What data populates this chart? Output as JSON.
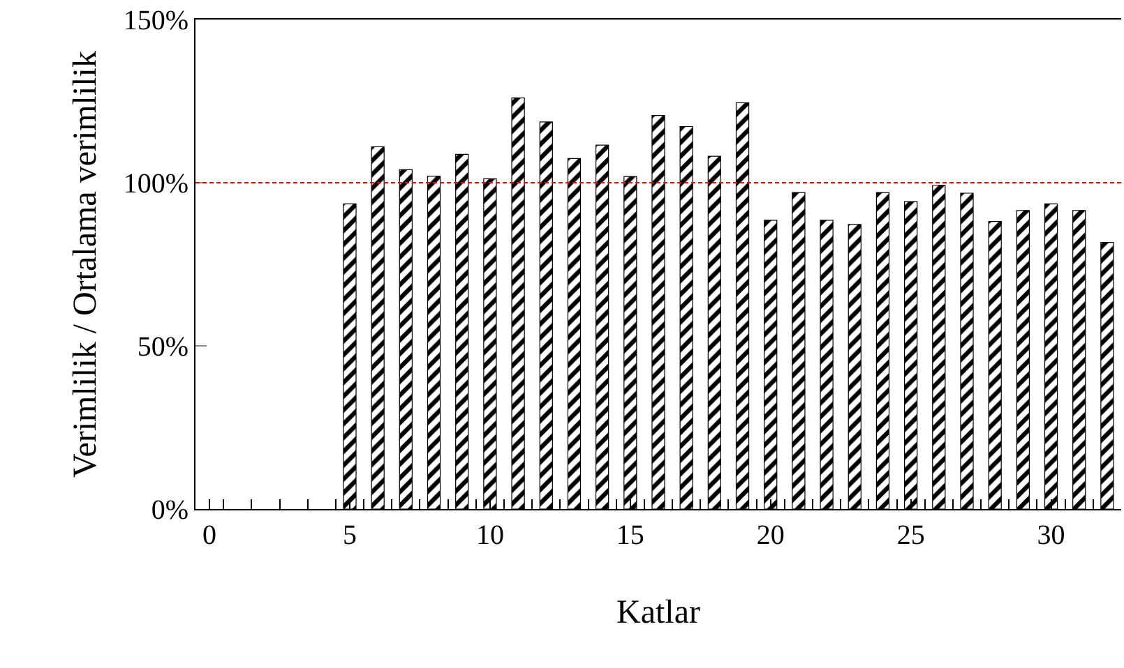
{
  "chart_data": {
    "type": "bar",
    "xlabel": "Katlar",
    "ylabel": "Verimlilik / Ortalama verimlilik",
    "x": [
      5,
      6,
      7,
      8,
      9,
      10,
      11,
      12,
      13,
      14,
      15,
      16,
      17,
      18,
      19,
      20,
      21,
      22,
      23,
      24,
      25,
      26,
      27,
      28,
      29,
      30,
      31,
      32
    ],
    "values": [
      93.5,
      111,
      104,
      102,
      108.7,
      101.2,
      126,
      118.6,
      107.4,
      111.5,
      101.9,
      120.6,
      117.2,
      108.1,
      124.5,
      88.5,
      97,
      88.5,
      87.2,
      97,
      94.2,
      99.2,
      96.8,
      88.1,
      91.5,
      93.5,
      91.5,
      81.7
    ],
    "color": "#000000",
    "xlim": [
      -0.5,
      32.5
    ],
    "xticks": [
      0,
      5,
      10,
      15,
      20,
      25,
      30,
      {
        "value": 0.5,
        "label": null
      },
      {
        "value": 1.5,
        "label": null
      },
      {
        "value": 2.5,
        "label": null
      },
      {
        "value": 3.5,
        "label": null
      },
      {
        "value": 4.5,
        "label": null
      },
      {
        "value": 5.5,
        "label": null
      },
      {
        "value": 6.5,
        "label": null
      },
      {
        "value": 7.5,
        "label": null
      },
      {
        "value": 8.5,
        "label": null
      },
      {
        "value": 9.5,
        "label": null
      },
      {
        "value": 10.5,
        "label": null
      },
      {
        "value": 11.5,
        "label": null
      },
      {
        "value": 12.5,
        "label": null
      },
      {
        "value": 13.5,
        "label": null
      },
      {
        "value": 14.5,
        "label": null
      },
      {
        "value": 15.5,
        "label": null
      },
      {
        "value": 16.5,
        "label": null
      },
      {
        "value": 17.5,
        "label": null
      },
      {
        "value": 18.5,
        "label": null
      },
      {
        "value": 19.5,
        "label": null
      },
      {
        "value": 20.5,
        "label": null
      },
      {
        "value": 21.5,
        "label": null
      },
      {
        "value": 22.5,
        "label": null
      },
      {
        "value": 23.5,
        "label": null
      },
      {
        "value": 24.5,
        "label": null
      },
      {
        "value": 25.5,
        "label": null
      },
      {
        "value": 26.5,
        "label": null
      },
      {
        "value": 27.5,
        "label": null
      },
      {
        "value": 28.5,
        "label": null
      },
      {
        "value": 29.5,
        "label": null
      },
      {
        "value": 30.5,
        "label": null
      },
      {
        "value": 31.5,
        "label": null
      }
    ],
    "ylim": [
      0,
      150
    ],
    "yticks": [
      {
        "value": 0,
        "label": "0%"
      },
      {
        "value": 50,
        "label": "50%"
      },
      {
        "value": 100,
        "label": "100%"
      },
      {
        "value": 150,
        "label": "150%"
      }
    ],
    "ref_lines": [
      {
        "axis": "y",
        "value": 100,
        "label": null,
        "color": "#ff0000",
        "line_style": "dashed"
      }
    ],
    "grid": false
  }
}
